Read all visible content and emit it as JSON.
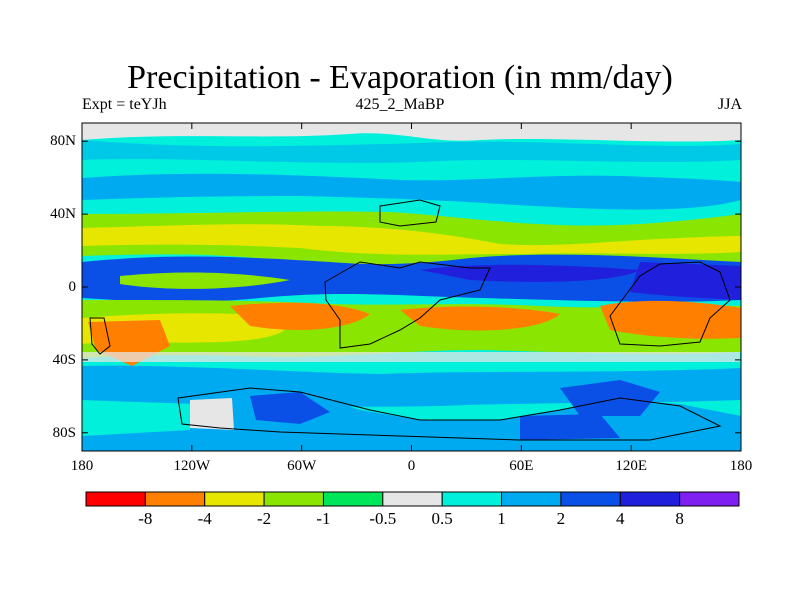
{
  "title": "Precipitation - Evaporation (in mm/day)",
  "subtitle_left": "Expt = teYJh",
  "subtitle_center": "425_2_MaBP",
  "subtitle_right": "JJA",
  "lat_ticks": [
    {
      "label": "80N",
      "value": 80
    },
    {
      "label": "40N",
      "value": 40
    },
    {
      "label": "0",
      "value": 0
    },
    {
      "label": "40S",
      "value": -40
    },
    {
      "label": "80S",
      "value": -80
    }
  ],
  "lon_ticks": [
    {
      "label": "180",
      "value": -180
    },
    {
      "label": "120W",
      "value": -120
    },
    {
      "label": "60W",
      "value": -60
    },
    {
      "label": "0",
      "value": 0
    },
    {
      "label": "60E",
      "value": 60
    },
    {
      "label": "120E",
      "value": 120
    },
    {
      "label": "180",
      "value": 180
    }
  ],
  "colorbar": {
    "colors": [
      "#ff0000",
      "#ff8000",
      "#e6e600",
      "#8ae600",
      "#00e65a",
      "#e6e6e6",
      "#00f0dc",
      "#00aaf0",
      "#0a50e6",
      "#2020dc",
      "#8020f0"
    ],
    "labels": [
      "-8",
      "-4",
      "-2",
      "-1",
      "-0.5",
      "0.5",
      "1",
      "2",
      "4",
      "8"
    ]
  }
}
